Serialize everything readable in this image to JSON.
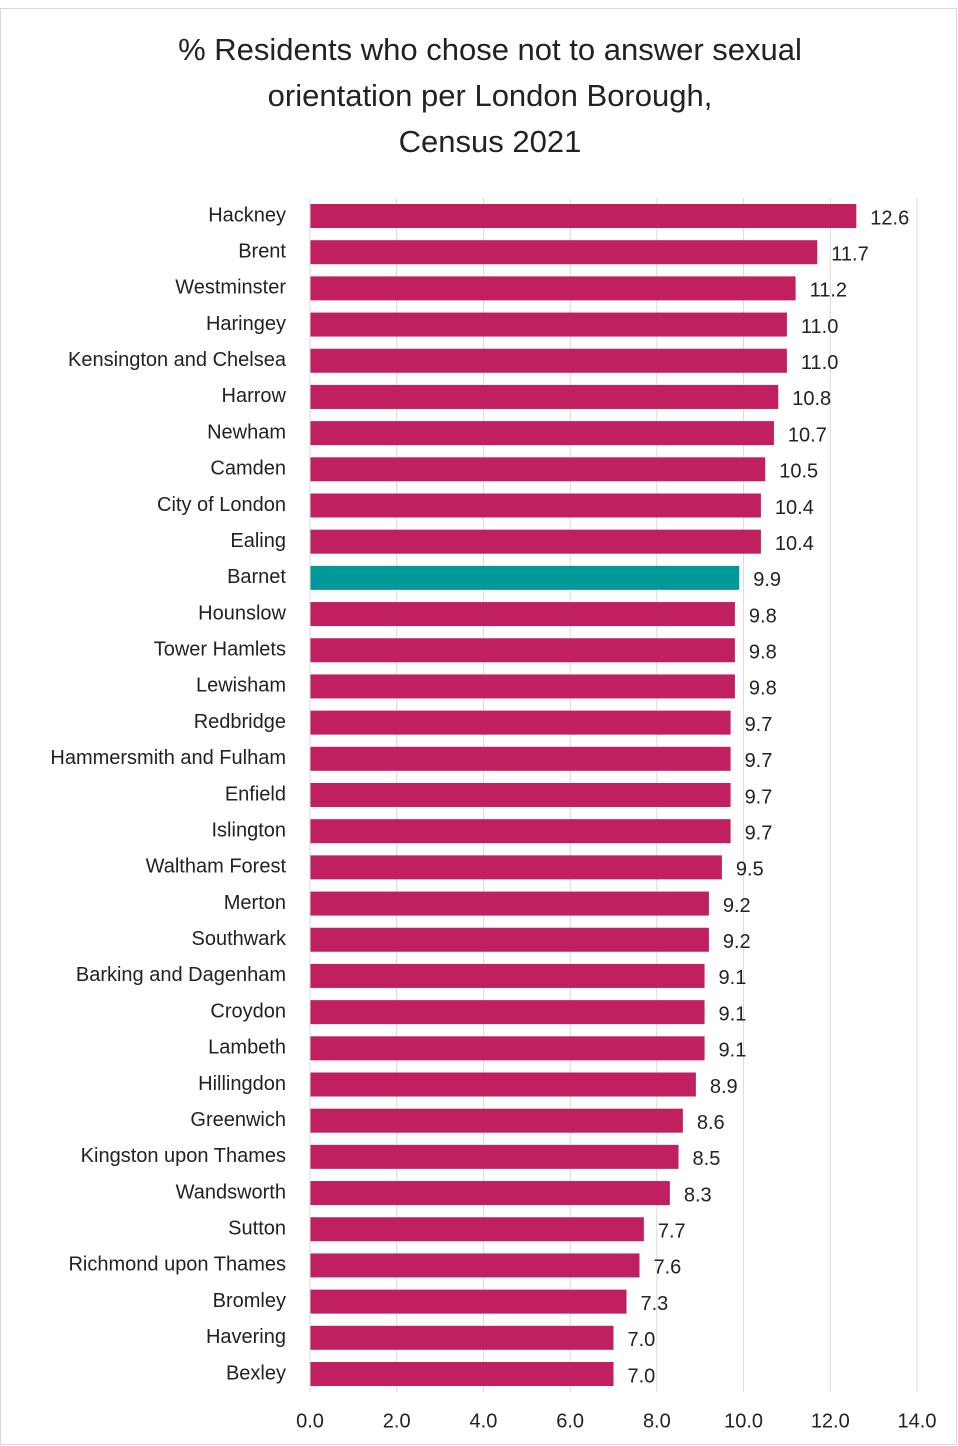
{
  "chart_data": {
    "type": "hbar",
    "title": [
      "% Residents who chose not to answer sexual",
      "orientation per London Borough,",
      "Census 2021"
    ],
    "categories": [
      "Hackney",
      "Brent",
      "Westminster",
      "Haringey",
      "Kensington and Chelsea",
      "Harrow",
      "Newham",
      "Camden",
      "City of London",
      "Ealing",
      "Barnet",
      "Hounslow",
      "Tower Hamlets",
      "Lewisham",
      "Redbridge",
      "Hammersmith and Fulham",
      "Enfield",
      "Islington",
      "Waltham Forest",
      "Merton",
      "Southwark",
      "Barking and Dagenham",
      "Croydon",
      "Lambeth",
      "Hillingdon",
      "Greenwich",
      "Kingston upon Thames",
      "Wandsworth",
      "Sutton",
      "Richmond upon Thames",
      "Bromley",
      "Havering",
      "Bexley"
    ],
    "values": [
      12.6,
      11.7,
      11.2,
      11.0,
      11.0,
      10.8,
      10.7,
      10.5,
      10.4,
      10.4,
      9.9,
      9.8,
      9.8,
      9.8,
      9.7,
      9.7,
      9.7,
      9.7,
      9.5,
      9.2,
      9.2,
      9.1,
      9.1,
      9.1,
      8.9,
      8.6,
      8.5,
      8.3,
      7.7,
      7.6,
      7.3,
      7.0,
      7.0
    ],
    "value_labels": [
      "12.6",
      "11.7",
      "11.2",
      "11.0",
      "11.0",
      "10.8",
      "10.7",
      "10.5",
      "10.4",
      "10.4",
      "9.9",
      "9.8",
      "9.8",
      "9.8",
      "9.7",
      "9.7",
      "9.7",
      "9.7",
      "9.5",
      "9.2",
      "9.2",
      "9.1",
      "9.1",
      "9.1",
      "8.9",
      "8.6",
      "8.5",
      "8.3",
      "7.7",
      "7.6",
      "7.3",
      "7.0",
      "7.0"
    ],
    "color": "#c0205f",
    "highlight": {
      "category": "Barnet",
      "color": "#00999a"
    },
    "xlim": [
      0,
      14
    ],
    "xticks": [
      {
        "value": 0,
        "label": "0.0"
      },
      {
        "value": 2,
        "label": "2.0"
      },
      {
        "value": 4,
        "label": "4.0"
      },
      {
        "value": 6,
        "label": "6.0"
      },
      {
        "value": 8,
        "label": "8.0"
      },
      {
        "value": 10,
        "label": "10.0"
      },
      {
        "value": 12,
        "label": "12.0"
      },
      {
        "value": 14,
        "label": "14.0"
      }
    ],
    "grid": true
  }
}
